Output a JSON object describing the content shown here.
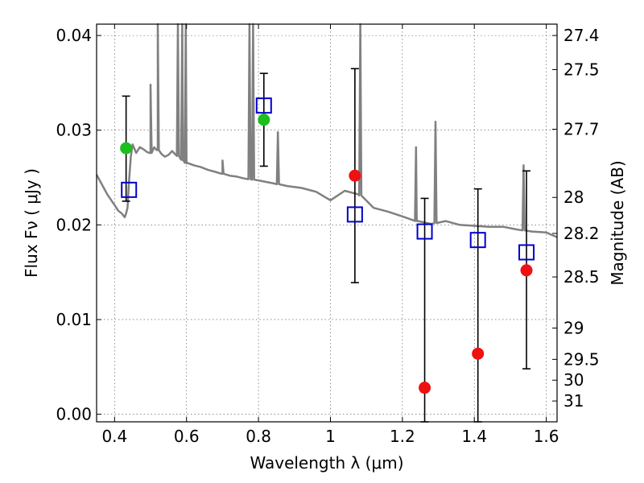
{
  "chart_data": {
    "type": "scatter",
    "xlabel": "Wavelength  λ (μm)",
    "ylabel": "Flux  Fν  ( μJy )",
    "ylabel_right": "Magnitude (AB)",
    "xlim": [
      0.35,
      1.63
    ],
    "ylim": [
      -0.0008,
      0.0412
    ],
    "grid": true,
    "x_ticks": [
      0.4,
      0.6,
      0.8,
      1.0,
      1.2,
      1.4,
      1.6
    ],
    "x_tick_labels": [
      "0.4",
      "0.6",
      "0.8",
      "1",
      "1.2",
      "1.4",
      "1.6"
    ],
    "y_ticks": [
      0.0,
      0.01,
      0.02,
      0.03,
      0.04
    ],
    "y_tick_labels": [
      "0.00",
      "0.01",
      "0.02",
      "0.03",
      "0.04"
    ],
    "right_ticks": [
      {
        "flux": 0.04,
        "label": "27.4"
      },
      {
        "flux": 0.0364,
        "label": "27.5"
      },
      {
        "flux": 0.0301,
        "label": "27.7"
      },
      {
        "flux": 0.0229,
        "label": "28"
      },
      {
        "flux": 0.0191,
        "label": "28.2"
      },
      {
        "flux": 0.0145,
        "label": "28.5"
      },
      {
        "flux": 0.0091,
        "label": "29"
      },
      {
        "flux": 0.0058,
        "label": "29.5"
      },
      {
        "flux": 0.0036,
        "label": "30"
      },
      {
        "flux": 0.0014,
        "label": "31"
      }
    ],
    "series": [
      {
        "kind": "spectrum",
        "color": "#808080",
        "x": [
          0.35,
          0.38,
          0.4,
          0.41,
          0.42,
          0.428,
          0.432,
          0.436,
          0.44,
          0.445,
          0.45,
          0.46,
          0.47,
          0.48,
          0.49,
          0.5,
          0.51,
          0.52,
          0.53,
          0.54,
          0.55,
          0.56,
          0.57,
          0.58,
          0.59,
          0.6,
          0.62,
          0.64,
          0.66,
          0.68,
          0.7,
          0.72,
          0.74,
          0.76,
          0.8,
          0.84,
          0.88,
          0.92,
          0.96,
          1.0,
          1.04,
          1.08,
          1.12,
          1.16,
          1.2,
          1.24,
          1.28,
          1.32,
          1.36,
          1.4,
          1.44,
          1.48,
          1.52,
          1.56,
          1.6,
          1.63
        ],
        "y": [
          0.0253,
          0.0232,
          0.0221,
          0.0215,
          0.0212,
          0.0208,
          0.0212,
          0.0218,
          0.0245,
          0.0272,
          0.0285,
          0.0276,
          0.0282,
          0.028,
          0.0277,
          0.0276,
          0.0282,
          0.0279,
          0.0275,
          0.0272,
          0.0274,
          0.0278,
          0.0274,
          0.0272,
          0.0268,
          0.0265,
          0.0263,
          0.0261,
          0.0258,
          0.0256,
          0.0254,
          0.0252,
          0.0251,
          0.0249,
          0.0247,
          0.0244,
          0.0241,
          0.0239,
          0.0235,
          0.0226,
          0.0236,
          0.0232,
          0.0218,
          0.0214,
          0.0209,
          0.0204,
          0.0201,
          0.0204,
          0.02,
          0.0199,
          0.0198,
          0.0198,
          0.0195,
          0.0193,
          0.0192,
          0.0187
        ],
        "emission_lines": [
          {
            "x": 0.5,
            "peak": 0.0348
          },
          {
            "x": 0.52,
            "peak": 0.0412
          },
          {
            "x": 0.576,
            "peak": 0.0412
          },
          {
            "x": 0.588,
            "peak": 0.0412
          },
          {
            "x": 0.598,
            "peak": 0.0412
          },
          {
            "x": 0.7,
            "peak": 0.0268
          },
          {
            "x": 0.775,
            "peak": 0.0412
          },
          {
            "x": 0.785,
            "peak": 0.0412
          },
          {
            "x": 0.854,
            "peak": 0.0298
          },
          {
            "x": 1.083,
            "peak": 0.0412
          },
          {
            "x": 1.238,
            "peak": 0.0282
          },
          {
            "x": 1.292,
            "peak": 0.0309
          },
          {
            "x": 1.537,
            "peak": 0.0263
          }
        ]
      },
      {
        "kind": "model",
        "marker": "open-square",
        "color": "#0000cc",
        "x": [
          0.44,
          0.815,
          1.068,
          1.262,
          1.41,
          1.545
        ],
        "y": [
          0.0237,
          0.0326,
          0.0211,
          0.0193,
          0.0184,
          0.0171
        ]
      },
      {
        "kind": "detection",
        "marker": "circle",
        "color": "#1dbe1d",
        "x": [
          0.432,
          0.815
        ],
        "y": [
          0.0281,
          0.0311
        ],
        "err_low": [
          0.0225,
          0.0262
        ],
        "err_high": [
          0.0336,
          0.036
        ]
      },
      {
        "kind": "detection",
        "marker": "circle",
        "color": "#ee1111",
        "x": [
          1.068,
          1.262,
          1.41,
          1.545
        ],
        "y": [
          0.0252,
          0.0028,
          0.0064,
          0.0152
        ],
        "err_low": [
          0.0139,
          -0.0008,
          -0.0008,
          0.0048
        ],
        "err_high": [
          0.0365,
          0.0228,
          0.0238,
          0.0257
        ]
      }
    ]
  }
}
